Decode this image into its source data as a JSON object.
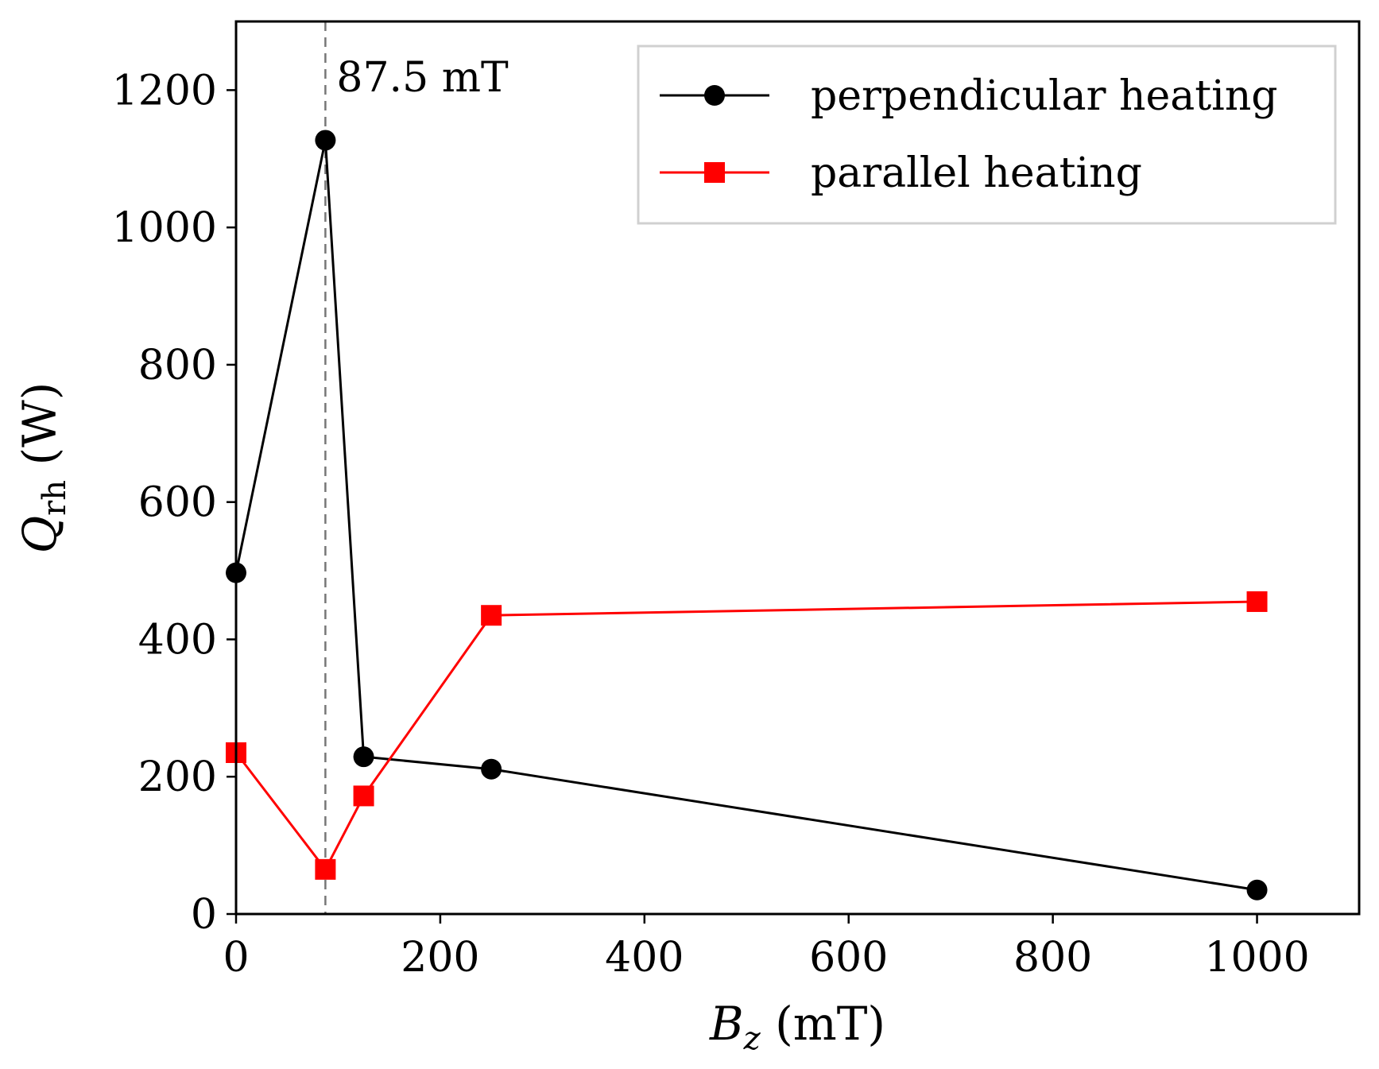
{
  "chart_data": {
    "type": "line",
    "title": "",
    "xlabel_main": "B",
    "xlabel_sub": "z",
    "xlabel_unit": " (mT)",
    "ylabel_main": "Q",
    "ylabel_sub": "rh",
    "ylabel_unit": " (W)",
    "xlim": [
      0,
      1100
    ],
    "ylim": [
      0,
      1300
    ],
    "xticks": [
      0,
      200,
      400,
      600,
      800,
      1000
    ],
    "yticks": [
      0,
      200,
      400,
      600,
      800,
      1000,
      1200
    ],
    "vline": {
      "x": 87.5,
      "label": "87.5 mT"
    },
    "legend_position": "top-right",
    "series": [
      {
        "name": "perpendicular heating",
        "color": "#000000",
        "marker": "circle",
        "x": [
          0,
          87.5,
          125,
          250,
          1000
        ],
        "y": [
          497,
          1127,
          229,
          211,
          35
        ]
      },
      {
        "name": "parallel heating",
        "color": "#ff0000",
        "marker": "square",
        "x": [
          0,
          87.5,
          125,
          250,
          1000
        ],
        "y": [
          235,
          65,
          172,
          435,
          455
        ]
      }
    ]
  }
}
